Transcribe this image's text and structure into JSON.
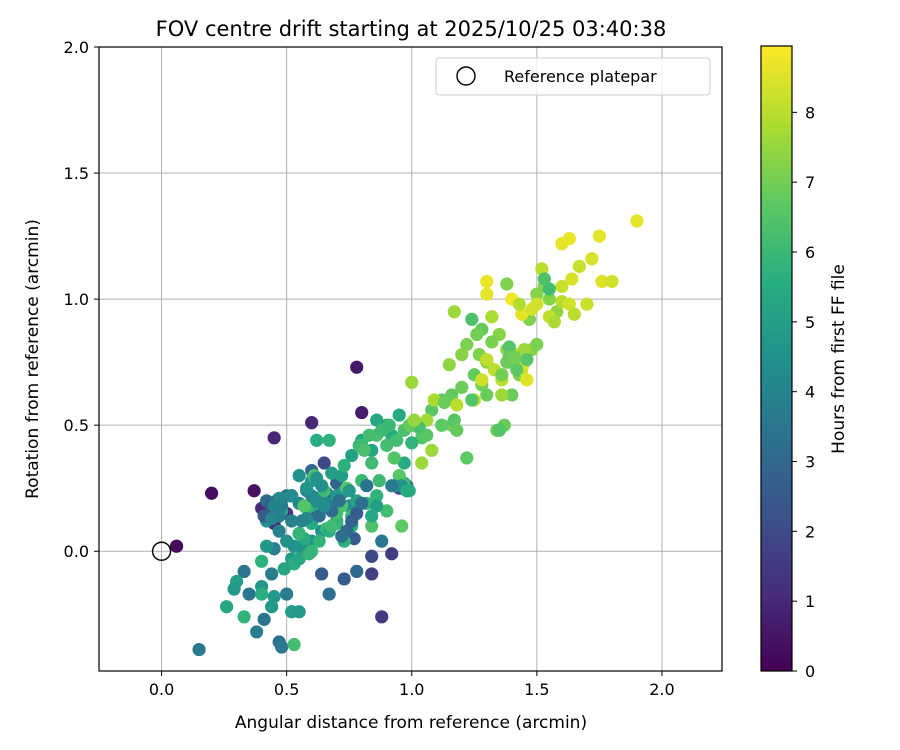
{
  "chart_data": {
    "type": "scatter",
    "title": "FOV centre drift starting at 2025/10/25 03:40:38",
    "xlabel": "Angular distance from reference (arcmin)",
    "ylabel": "Rotation from reference (arcmin)",
    "xlim": [
      -0.25,
      2.24
    ],
    "ylim": [
      -0.475,
      2.0
    ],
    "x_ticks": [
      0.0,
      0.5,
      1.0,
      1.5,
      2.0
    ],
    "x_tick_labels": [
      "0.0",
      "0.5",
      "1.0",
      "1.5",
      "2.0"
    ],
    "y_ticks": [
      0.0,
      0.5,
      1.0,
      1.5,
      2.0
    ],
    "y_tick_labels": [
      "0.0",
      "0.5",
      "1.0",
      "1.5",
      "2.0"
    ],
    "grid": true,
    "legend": {
      "position": "top-right",
      "entries": [
        {
          "label": "Reference platepar",
          "marker": "open-circle"
        }
      ]
    },
    "reference_point": {
      "x": 0.0,
      "y": 0.0
    },
    "colorbar": {
      "label": "Hours from first FF file",
      "colormap": "viridis",
      "range": [
        0,
        8.95
      ],
      "ticks": [
        0,
        1,
        2,
        3,
        4,
        5,
        6,
        7,
        8
      ],
      "tick_labels": [
        "0",
        "1",
        "2",
        "3",
        "4",
        "5",
        "6",
        "7",
        "8"
      ]
    },
    "points": [
      [
        0.06,
        0.02,
        0.2
      ],
      [
        0.2,
        0.23,
        0.3
      ],
      [
        0.37,
        0.24,
        0.4
      ],
      [
        0.78,
        0.73,
        0.6
      ],
      [
        0.8,
        0.55,
        0.7
      ],
      [
        0.45,
        0.45,
        1.0
      ],
      [
        0.6,
        0.51,
        1.0
      ],
      [
        0.4,
        0.17,
        1.1
      ],
      [
        0.45,
        0.11,
        1.3
      ],
      [
        0.5,
        0.15,
        1.3
      ],
      [
        0.88,
        -0.26,
        1.5
      ],
      [
        0.92,
        -0.01,
        1.6
      ],
      [
        0.84,
        -0.09,
        1.7
      ],
      [
        0.84,
        -0.02,
        2.0
      ],
      [
        0.65,
        0.35,
        2.0
      ],
      [
        0.6,
        0.17,
        2.0
      ],
      [
        0.95,
        0.25,
        2.1
      ],
      [
        0.98,
        0.26,
        2.2
      ],
      [
        0.46,
        0.2,
        2.3
      ],
      [
        0.55,
        0.07,
        2.4
      ],
      [
        0.64,
        -0.09,
        2.5
      ],
      [
        0.73,
        -0.11,
        2.6
      ],
      [
        0.77,
        0.05,
        2.6
      ],
      [
        0.66,
        0.23,
        2.7
      ],
      [
        0.7,
        0.27,
        2.9
      ],
      [
        0.52,
        0.22,
        2.9
      ],
      [
        0.6,
        0.32,
        3.0
      ],
      [
        0.78,
        -0.08,
        3.0
      ],
      [
        0.67,
        -0.17,
        3.2
      ],
      [
        0.47,
        -0.36,
        3.3
      ],
      [
        0.41,
        -0.27,
        3.4
      ],
      [
        0.35,
        -0.17,
        3.5
      ],
      [
        0.33,
        -0.08,
        3.5
      ],
      [
        0.48,
        -0.38,
        3.6
      ],
      [
        0.5,
        -0.17,
        3.7
      ],
      [
        0.44,
        -0.09,
        3.8
      ],
      [
        0.45,
        0.01,
        3.8
      ],
      [
        0.47,
        0.08,
        3.9
      ],
      [
        0.52,
        0.12,
        3.9
      ],
      [
        0.55,
        0.19,
        4.0
      ],
      [
        0.58,
        0.24,
        4.1
      ],
      [
        0.62,
        0.21,
        4.2
      ],
      [
        0.66,
        0.19,
        4.3
      ],
      [
        0.72,
        0.23,
        4.4
      ],
      [
        0.75,
        0.18,
        4.4
      ],
      [
        0.7,
        0.12,
        4.5
      ],
      [
        0.64,
        0.08,
        4.5
      ],
      [
        0.6,
        0.04,
        4.6
      ],
      [
        0.56,
        0.01,
        4.6
      ],
      [
        0.42,
        0.02,
        4.7
      ],
      [
        0.4,
        -0.14,
        4.7
      ],
      [
        0.38,
        -0.32,
        3.8
      ],
      [
        0.44,
        -0.22,
        4.8
      ],
      [
        0.45,
        -0.18,
        4.8
      ],
      [
        0.52,
        -0.03,
        4.9
      ],
      [
        0.6,
        0.28,
        4.9
      ],
      [
        0.68,
        0.31,
        5.0
      ],
      [
        0.72,
        0.3,
        5.0
      ],
      [
        0.76,
        0.38,
        5.1
      ],
      [
        0.8,
        0.44,
        5.2
      ],
      [
        0.84,
        0.4,
        5.3
      ],
      [
        0.86,
        0.52,
        5.3
      ],
      [
        0.9,
        0.5,
        5.4
      ],
      [
        0.95,
        0.54,
        5.4
      ],
      [
        0.92,
        0.46,
        5.5
      ],
      [
        0.97,
        0.35,
        5.5
      ],
      [
        0.99,
        0.24,
        5.6
      ],
      [
        0.97,
        0.27,
        5.6
      ],
      [
        0.86,
        0.22,
        5.8
      ],
      [
        0.82,
        0.19,
        5.8
      ],
      [
        0.76,
        0.14,
        5.9
      ],
      [
        0.7,
        0.11,
        5.9
      ],
      [
        0.66,
        0.09,
        6.0
      ],
      [
        0.6,
        0.0,
        6.0
      ],
      [
        0.58,
        0.17,
        6.0
      ],
      [
        0.62,
        0.44,
        5.6
      ],
      [
        0.67,
        0.44,
        5.7
      ],
      [
        0.3,
        -0.12,
        5.0
      ],
      [
        0.26,
        -0.22,
        5.2
      ],
      [
        0.29,
        -0.15,
        4.8
      ],
      [
        0.15,
        -0.39,
        3.6
      ],
      [
        0.42,
        0.12,
        4.5
      ],
      [
        0.52,
        -0.24,
        4.9
      ],
      [
        0.55,
        -0.24,
        4.8
      ],
      [
        0.53,
        -0.05,
        5.6
      ],
      [
        0.55,
        -0.03,
        5.3
      ],
      [
        0.57,
        0.05,
        5.4
      ],
      [
        0.6,
        0.11,
        5.5
      ],
      [
        0.63,
        0.16,
        5.5
      ],
      [
        0.67,
        0.08,
        5.6
      ],
      [
        0.73,
        0.04,
        5.7
      ],
      [
        0.76,
        0.1,
        5.6
      ],
      [
        0.8,
        0.28,
        6.0
      ],
      [
        0.84,
        0.35,
        6.1
      ],
      [
        0.87,
        0.28,
        6.1
      ],
      [
        0.9,
        0.42,
        6.2
      ],
      [
        0.94,
        0.44,
        6.2
      ],
      [
        0.97,
        0.48,
        6.3
      ],
      [
        1.0,
        0.5,
        6.4
      ],
      [
        1.04,
        0.45,
        6.5
      ],
      [
        1.08,
        0.56,
        6.6
      ],
      [
        1.12,
        0.6,
        6.7
      ],
      [
        1.16,
        0.62,
        6.8
      ],
      [
        1.2,
        0.65,
        6.9
      ],
      [
        1.25,
        0.7,
        6.8
      ],
      [
        1.28,
        0.66,
        7.0
      ],
      [
        1.3,
        0.62,
        6.9
      ],
      [
        1.34,
        0.48,
        7.0
      ],
      [
        1.37,
        0.5,
        6.9
      ],
      [
        1.4,
        0.62,
        6.9
      ],
      [
        1.43,
        0.7,
        7.1
      ],
      [
        1.45,
        0.75,
        7.2
      ],
      [
        1.48,
        0.8,
        7.3
      ],
      [
        1.5,
        0.82,
        7.1
      ],
      [
        1.47,
        0.92,
        7.2
      ],
      [
        1.5,
        1.02,
        7.3
      ],
      [
        1.53,
        1.05,
        7.2
      ],
      [
        1.55,
        1.0,
        7.3
      ],
      [
        1.58,
        0.95,
        7.4
      ],
      [
        1.42,
        0.76,
        7.5
      ],
      [
        1.38,
        0.8,
        7.4
      ],
      [
        1.35,
        0.86,
        7.3
      ],
      [
        1.32,
        0.83,
        7.1
      ],
      [
        1.3,
        0.75,
        7.2
      ],
      [
        1.27,
        0.78,
        7.2
      ],
      [
        1.22,
        0.82,
        7.1
      ],
      [
        1.2,
        0.78,
        7.3
      ],
      [
        1.17,
        0.95,
        7.6
      ],
      [
        1.15,
        0.74,
        7.4
      ],
      [
        1.12,
        0.5,
        7.3
      ],
      [
        1.08,
        0.4,
        7.6
      ],
      [
        1.04,
        0.35,
        7.6
      ],
      [
        1.0,
        0.67,
        7.6
      ],
      [
        1.02,
        0.5,
        7.7
      ],
      [
        1.06,
        0.52,
        7.7
      ],
      [
        1.09,
        0.6,
        7.8
      ],
      [
        1.18,
        0.58,
        8.0
      ],
      [
        1.25,
        0.6,
        8.0
      ],
      [
        1.28,
        0.68,
        8.3
      ],
      [
        1.3,
        0.76,
        8.1
      ],
      [
        1.33,
        0.72,
        8.0
      ],
      [
        1.36,
        0.68,
        8.0
      ],
      [
        1.39,
        0.75,
        8.4
      ],
      [
        1.42,
        0.78,
        8.2
      ],
      [
        1.44,
        0.72,
        8.4
      ],
      [
        1.46,
        0.68,
        8.5
      ],
      [
        1.44,
        0.94,
        8.6
      ],
      [
        1.48,
        0.96,
        8.4
      ],
      [
        1.5,
        0.98,
        8.3
      ],
      [
        1.52,
        1.12,
        8.0
      ],
      [
        1.55,
        0.93,
        8.1
      ],
      [
        1.57,
        0.91,
        7.8
      ],
      [
        1.6,
        0.99,
        8.0
      ],
      [
        1.63,
        0.98,
        8.3
      ],
      [
        1.65,
        0.94,
        8.0
      ],
      [
        1.6,
        1.05,
        8.2
      ],
      [
        1.64,
        1.08,
        8.4
      ],
      [
        1.67,
        1.13,
        8.2
      ],
      [
        1.7,
        0.98,
        8.2
      ],
      [
        1.72,
        1.16,
        8.4
      ],
      [
        1.75,
        1.25,
        8.6
      ],
      [
        1.76,
        1.07,
        8.5
      ],
      [
        1.8,
        1.07,
        8.3
      ],
      [
        1.6,
        1.22,
        8.6
      ],
      [
        1.63,
        1.24,
        8.7
      ],
      [
        1.9,
        1.31,
        8.6
      ],
      [
        1.3,
        1.07,
        8.7
      ],
      [
        1.3,
        1.02,
        8.6
      ],
      [
        1.4,
        1.0,
        8.8
      ],
      [
        1.45,
        0.8,
        7.6
      ],
      [
        1.43,
        0.98,
        7.9
      ],
      [
        1.32,
        0.93,
        7.8
      ],
      [
        1.28,
        0.88,
        6.8
      ],
      [
        1.26,
        0.86,
        7.0
      ],
      [
        1.36,
        0.7,
        7.0
      ],
      [
        1.38,
        0.75,
        6.9
      ],
      [
        1.39,
        0.81,
        6.5
      ],
      [
        1.39,
        0.77,
        6.8
      ],
      [
        1.41,
        0.77,
        7.0
      ],
      [
        1.36,
        0.62,
        7.6
      ],
      [
        1.16,
        0.5,
        6.9
      ],
      [
        1.12,
        0.5,
        6.7
      ],
      [
        1.13,
        0.59,
        6.9
      ],
      [
        1.06,
        0.46,
        6.6
      ],
      [
        1.03,
        0.49,
        6.3
      ],
      [
        1.0,
        0.43,
        5.8
      ],
      [
        0.97,
        0.26,
        6.2
      ],
      [
        0.95,
        0.3,
        6.6
      ],
      [
        0.9,
        0.16,
        6.2
      ],
      [
        0.96,
        0.1,
        6.7
      ],
      [
        0.86,
        0.46,
        6.3
      ],
      [
        0.84,
        0.1,
        6.4
      ],
      [
        0.8,
        0.42,
        6.0
      ],
      [
        0.74,
        0.25,
        6.6
      ],
      [
        0.72,
        0.18,
        6.4
      ],
      [
        0.7,
        0.15,
        6.2
      ],
      [
        0.68,
        0.1,
        6.1
      ],
      [
        0.63,
        0.04,
        5.8
      ],
      [
        0.59,
        -0.01,
        5.9
      ],
      [
        0.55,
        0.07,
        5.9
      ],
      [
        0.48,
        0.16,
        5.4
      ],
      [
        0.49,
        -0.07,
        5.2
      ],
      [
        0.53,
        -0.37,
        6.2
      ],
      [
        0.4,
        -0.04,
        5.7
      ],
      [
        0.4,
        -0.17,
        5.6
      ],
      [
        0.33,
        -0.26,
        5.8
      ],
      [
        0.57,
        0.18,
        6.5
      ],
      [
        0.61,
        0.3,
        6.3
      ],
      [
        0.65,
        0.24,
        6.1
      ],
      [
        0.73,
        0.34,
        5.7
      ],
      [
        0.79,
        0.42,
        6.1
      ],
      [
        0.81,
        0.4,
        6.3
      ],
      [
        0.83,
        0.46,
        6.2
      ],
      [
        0.88,
        0.48,
        6.1
      ],
      [
        0.91,
        0.5,
        6.0
      ],
      [
        0.93,
        0.37,
        6.5
      ],
      [
        0.99,
        0.5,
        6.8
      ],
      [
        1.01,
        0.52,
        7.5
      ],
      [
        1.24,
        0.92,
        6.4
      ],
      [
        1.35,
        0.48,
        6.5
      ],
      [
        1.42,
        0.72,
        6.7
      ],
      [
        1.46,
        0.76,
        6.6
      ],
      [
        1.53,
        1.08,
        6.4
      ],
      [
        1.55,
        1.04,
        6.2
      ],
      [
        1.38,
        1.06,
        7.2
      ],
      [
        1.24,
        0.6,
        6.5
      ],
      [
        1.22,
        0.37,
        6.7
      ],
      [
        1.17,
        0.52,
        6.6
      ],
      [
        1.18,
        0.48,
        6.8
      ],
      [
        0.93,
        0.26,
        5.0
      ],
      [
        0.96,
        0.26,
        4.6
      ],
      [
        0.98,
        0.24,
        5.4
      ],
      [
        0.86,
        0.18,
        5.0
      ],
      [
        0.84,
        0.14,
        5.3
      ],
      [
        0.78,
        0.2,
        5.1
      ],
      [
        0.75,
        0.24,
        4.8
      ],
      [
        0.7,
        0.22,
        4.7
      ],
      [
        0.64,
        0.26,
        4.4
      ],
      [
        0.62,
        0.29,
        4.6
      ],
      [
        0.58,
        0.13,
        4.2
      ],
      [
        0.56,
        0.12,
        4.0
      ],
      [
        0.53,
        0.02,
        4.6
      ],
      [
        0.5,
        0.04,
        4.5
      ],
      [
        0.48,
        0.18,
        3.8
      ],
      [
        0.5,
        0.22,
        3.6
      ],
      [
        0.47,
        0.14,
        3.9
      ],
      [
        0.42,
        0.2,
        3.1
      ],
      [
        0.44,
        0.18,
        2.5
      ],
      [
        0.41,
        0.14,
        2.6
      ],
      [
        0.63,
        0.14,
        3.2
      ],
      [
        0.66,
        0.18,
        3.4
      ],
      [
        0.68,
        0.16,
        3.1
      ],
      [
        0.71,
        0.2,
        3.3
      ],
      [
        0.74,
        0.08,
        3.0
      ],
      [
        0.76,
        0.12,
        2.8
      ],
      [
        0.78,
        0.15,
        2.6
      ],
      [
        0.8,
        0.19,
        3.2
      ],
      [
        0.82,
        0.26,
        3.4
      ],
      [
        0.88,
        0.04,
        3.5
      ],
      [
        0.92,
        0.26,
        3.6
      ],
      [
        0.72,
        0.06,
        3.3
      ],
      [
        0.6,
        0.22,
        4.1
      ],
      [
        0.62,
        0.2,
        4.4
      ],
      [
        0.65,
        0.18,
        4.3
      ],
      [
        0.58,
        0.25,
        4.6
      ],
      [
        0.55,
        0.3,
        4.5
      ],
      [
        0.52,
        0.22,
        4.3
      ],
      [
        0.47,
        0.21,
        4.2
      ],
      [
        0.45,
        0.18,
        3.9
      ],
      [
        0.44,
        0.13,
        4.0
      ]
    ]
  }
}
